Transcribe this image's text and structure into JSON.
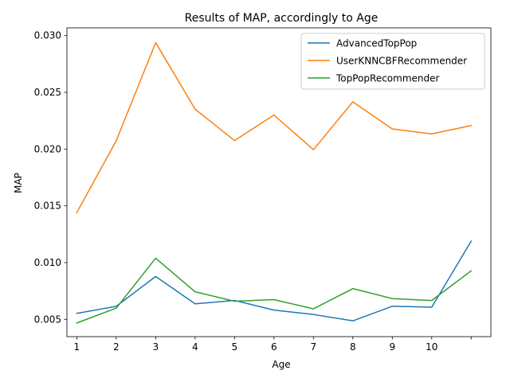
{
  "chart_data": {
    "type": "line",
    "title": "Results of MAP, accordingly to Age",
    "xlabel": "Age",
    "ylabel": "MAP",
    "x": [
      1,
      2,
      3,
      4,
      5,
      6,
      7,
      8,
      9,
      10,
      11
    ],
    "x_tick_labels": [
      "1",
      "2",
      "3",
      "4",
      "5",
      "6",
      "7",
      "8",
      "9",
      "10",
      ""
    ],
    "xlim": [
      0.75,
      11.5
    ],
    "ylim": [
      0.00348,
      0.03068
    ],
    "y_ticks": [
      0.005,
      0.01,
      0.015,
      0.02,
      0.025,
      0.03
    ],
    "y_tick_labels": [
      "0.005",
      "0.010",
      "0.015",
      "0.020",
      "0.025",
      "0.030"
    ],
    "legend_position": "top-right",
    "grid": false,
    "series": [
      {
        "name": "AdvancedTopPop",
        "color": "#1f77b4",
        "values": [
          0.00553,
          0.00615,
          0.00878,
          0.00637,
          0.00667,
          0.00582,
          0.00543,
          0.00487,
          0.00616,
          0.00607,
          0.01189
        ]
      },
      {
        "name": "UserKNNCBFRecommender",
        "color": "#ff7f0e",
        "values": [
          0.0144,
          0.02074,
          0.02937,
          0.02352,
          0.02075,
          0.023,
          0.01995,
          0.02416,
          0.02178,
          0.02134,
          0.02207
        ]
      },
      {
        "name": "TopPopRecommender",
        "color": "#2ca02c",
        "values": [
          0.00468,
          0.00599,
          0.01039,
          0.00743,
          0.0066,
          0.00674,
          0.00593,
          0.00771,
          0.00683,
          0.00666,
          0.00928
        ]
      }
    ]
  }
}
